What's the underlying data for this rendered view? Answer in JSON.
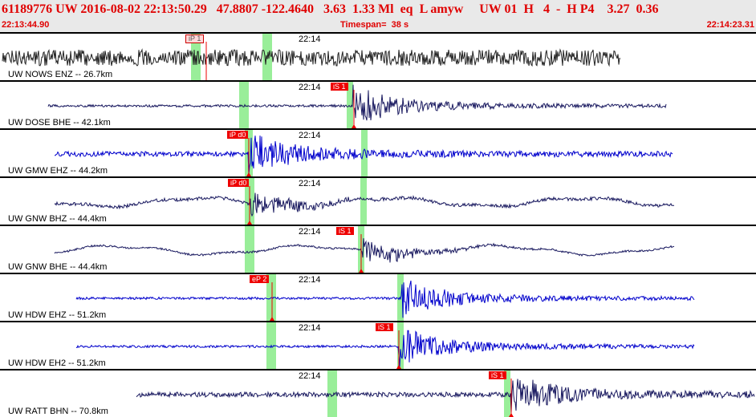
{
  "header": {
    "title": "61189776 UW 2016-08-02 22:13:50.29   47.8807 -122.4640   3.63  1.33 Ml  eq  L amyw     UW 01  H   4  -  H P4    3.27  0.36",
    "start_time": "22:13:44.90",
    "timespan": "Timespan=  38 s",
    "end_time": "22:14:23.31"
  },
  "colors": {
    "header_text": "#e00000",
    "pick": "#ee0000",
    "window": "#99ee99"
  },
  "panels": [
    {
      "station": "UW NOWS ENZ -- 26.7km",
      "time_label": "22:14",
      "pick_label": "iP 1",
      "pick_ghost": true,
      "trace_color": "#222222",
      "trace_type": "noise"
    },
    {
      "station": "UW DOSE BHE -- 42.1km",
      "time_label": "22:14",
      "pick_label": "iS 1",
      "pick_ghost": false,
      "trace_color": "#1a1a60",
      "trace_type": "quake"
    },
    {
      "station": "UW GMW EHZ -- 44.2km",
      "time_label": "22:14",
      "pick_label": "iP d0",
      "pick_ghost": false,
      "trace_color": "#0000cc",
      "trace_type": "quake"
    },
    {
      "station": "UW GNW BHZ -- 44.4km",
      "time_label": "22:14",
      "pick_label": "iP d0",
      "pick_ghost": false,
      "trace_color": "#1a1a60",
      "trace_type": "wavy"
    },
    {
      "station": "UW GNW BHE -- 44.4km",
      "time_label": "22:14",
      "pick_label": "iS 1",
      "pick_ghost": false,
      "trace_color": "#1a1a60",
      "trace_type": "wavy"
    },
    {
      "station": "UW HDW EHZ -- 51.2km",
      "time_label": "22:14",
      "pick_label": "eP 2",
      "pick_ghost": false,
      "trace_color": "#0000cc",
      "trace_type": "quake"
    },
    {
      "station": "UW HDW EH2 -- 51.2km",
      "time_label": "22:14",
      "pick_label": "iS 1",
      "pick_ghost": false,
      "trace_color": "#0000cc",
      "trace_type": "quake"
    },
    {
      "station": "UW RATT BHN -- 70.8km",
      "time_label": "22:14",
      "pick_label": "iS 1",
      "pick_ghost": false,
      "trace_color": "#1a1a60",
      "trace_type": "quake"
    }
  ]
}
